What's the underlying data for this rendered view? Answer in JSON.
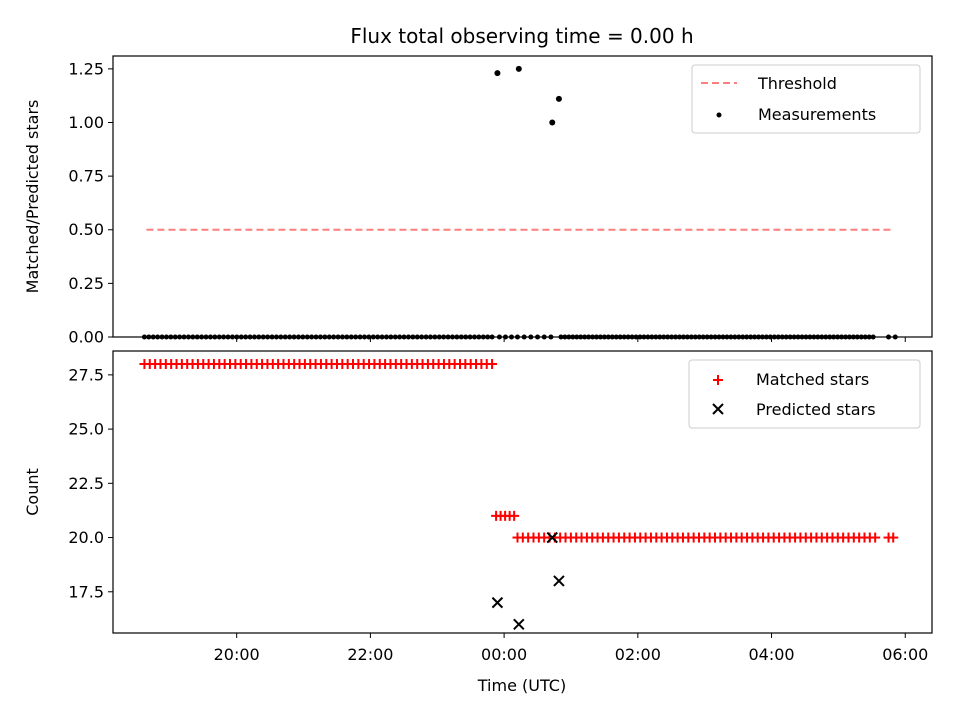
{
  "figure": {
    "title": "Flux total observing time = 0.00 h",
    "xlabel": "Time (UTC)",
    "xticks": [
      {
        "label": "20:00",
        "h": 20
      },
      {
        "label": "22:00",
        "h": 22
      },
      {
        "label": "00:00",
        "h": 24
      },
      {
        "label": "02:00",
        "h": 26
      },
      {
        "label": "04:00",
        "h": 28
      },
      {
        "label": "06:00",
        "h": 30
      }
    ],
    "xlim_hours": [
      18.15,
      30.4
    ]
  },
  "chart_data": [
    {
      "type": "scatter",
      "ylabel": "Matched/Predicted stars",
      "ylim": [
        0,
        1.31
      ],
      "yticks": [
        "0.00",
        "0.25",
        "0.50",
        "0.75",
        "1.00",
        "1.25"
      ],
      "legend": {
        "placement": "top-right",
        "entries": [
          "Threshold",
          "Measurements"
        ]
      },
      "threshold": {
        "name": "Threshold",
        "y": 0.5,
        "x_start_h": 18.65,
        "x_end_h": 29.8,
        "color": "#ff7f7f",
        "style": "dashed"
      },
      "measurements": {
        "name": "Measurements",
        "color": "#000000",
        "zero_runs": [
          {
            "start_h": 18.62,
            "end_h": 23.82,
            "count": 80
          },
          {
            "start_h": 23.93,
            "end_h": 24.2,
            "count": 4
          },
          {
            "start_h": 24.3,
            "end_h": 24.7,
            "count": 5
          },
          {
            "start_h": 24.85,
            "end_h": 29.52,
            "count": 80
          },
          {
            "start_h": 29.75,
            "end_h": 29.85,
            "count": 2
          }
        ],
        "points": [
          {
            "x_h": 23.9,
            "y": 1.23
          },
          {
            "x_h": 24.22,
            "y": 1.25
          },
          {
            "x_h": 24.72,
            "y": 1.0
          },
          {
            "x_h": 24.82,
            "y": 1.11
          }
        ]
      }
    },
    {
      "type": "scatter",
      "ylabel": "Count",
      "ylim": [
        15.6,
        28.6
      ],
      "yticks": [
        "17.5",
        "20.0",
        "22.5",
        "25.0",
        "27.5"
      ],
      "legend": {
        "placement": "top-right",
        "entries": [
          "Matched stars",
          "Predicted stars"
        ]
      },
      "matched": {
        "name": "Matched stars",
        "color": "#ff0000",
        "marker": "plus",
        "runs": [
          {
            "start_h": 18.62,
            "end_h": 23.82,
            "count": 66,
            "y": 28
          },
          {
            "start_h": 23.88,
            "end_h": 24.15,
            "count": 5,
            "y": 21
          },
          {
            "start_h": 24.2,
            "end_h": 29.55,
            "count": 68,
            "y": 20
          },
          {
            "start_h": 29.75,
            "end_h": 29.82,
            "count": 2,
            "y": 20
          }
        ]
      },
      "predicted": {
        "name": "Predicted stars",
        "color": "#000000",
        "marker": "x",
        "points": [
          {
            "x_h": 23.9,
            "y": 17
          },
          {
            "x_h": 24.22,
            "y": 16
          },
          {
            "x_h": 24.72,
            "y": 20
          },
          {
            "x_h": 24.82,
            "y": 18
          }
        ]
      }
    }
  ]
}
